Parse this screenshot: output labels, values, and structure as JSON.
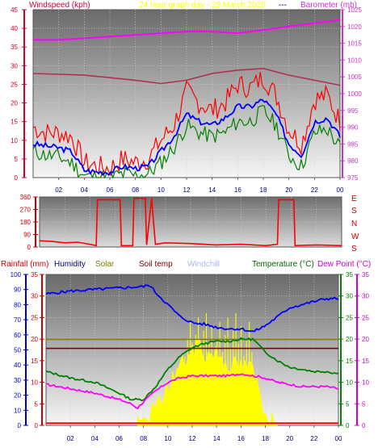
{
  "header": {
    "windspeed": "Windspeed (kph)",
    "title": "24 hour graph day - 29 March 2020",
    "dashes": "---",
    "barometer": "Barometer (mb)"
  },
  "legend2": {
    "rainfall": "Rainfall (mm)",
    "humidity": "Humidity",
    "solar": "Solar",
    "soiltemp": "Soil temp",
    "windchill": "Windchill",
    "temperature": "Temperature (°C)",
    "dewpoint": "Dew Point (°C)"
  },
  "compass": [
    "E",
    "S",
    "N",
    "W",
    "S"
  ],
  "colors": {
    "wind_gust": "#ff0000",
    "wind_avg": "#0000ff",
    "wind_low": "#008000",
    "barometer": "#b03050",
    "pressure_axis": "#cc33cc",
    "humidity": "#0000ff",
    "solar": "#808000",
    "soiltemp": "#800000",
    "temperature": "#008000",
    "dewpoint": "#ff00ff",
    "sun": "#ffff00",
    "rain": "#ff0000"
  },
  "chart_data": [
    {
      "type": "line",
      "name": "wind-barometer",
      "x_ticks": [
        "02",
        "04",
        "06",
        "08",
        "10",
        "12",
        "14",
        "16",
        "18",
        "20",
        "22",
        "00"
      ],
      "left_axis": {
        "ticks": [
          0,
          5,
          10,
          15,
          20,
          25,
          30,
          35,
          40,
          45
        ],
        "ylim": [
          0,
          45
        ]
      },
      "right_axis": {
        "ticks": [
          975,
          980,
          985,
          990,
          995,
          1000,
          1005,
          1010,
          1015,
          1020,
          1025
        ],
        "ylim": [
          975,
          1025
        ]
      },
      "series": [
        {
          "hours": [
            0,
            1,
            2,
            3,
            4,
            5,
            6,
            7,
            8,
            9,
            10,
            11,
            12,
            13,
            14,
            15,
            16,
            17,
            18,
            19,
            20,
            21,
            22,
            23,
            24
          ],
          "values": [
            13.5,
            12,
            12,
            11,
            4,
            3,
            2.5,
            5,
            4,
            5,
            10,
            14,
            23,
            20,
            18,
            20,
            25,
            24,
            27,
            22,
            13,
            9,
            21,
            22,
            15
          ]
        },
        {
          "hours": [
            0,
            1,
            2,
            3,
            4,
            5,
            6,
            7,
            8,
            9,
            10,
            11,
            12,
            13,
            14,
            15,
            16,
            17,
            18,
            19,
            20,
            21,
            22,
            23,
            24
          ],
          "values": [
            9,
            8.5,
            8,
            7,
            2,
            1.5,
            1.5,
            3,
            2.5,
            3,
            7,
            11,
            17,
            15,
            14,
            16,
            19,
            19,
            21,
            17,
            9,
            6,
            15,
            16,
            11
          ]
        },
        {
          "hours": [
            0,
            1,
            2,
            3,
            4,
            5,
            6,
            7,
            8,
            9,
            10,
            11,
            12,
            13,
            14,
            15,
            16,
            17,
            18,
            19,
            20,
            21,
            22,
            23,
            24
          ],
          "values": [
            7,
            6,
            5.5,
            4,
            0.5,
            0,
            0,
            1,
            0.5,
            1,
            4,
            8,
            14,
            12,
            11,
            12,
            15,
            15,
            18,
            14,
            6,
            3,
            12,
            13,
            8
          ]
        },
        {
          "hours": [
            0,
            4,
            8,
            10,
            12,
            14,
            16,
            18,
            20,
            22,
            24
          ],
          "values": [
            1006,
            1005.5,
            1004,
            1003,
            1004,
            1006,
            1007,
            1007.5,
            1005.5,
            1004,
            1002.5
          ]
        },
        {
          "hours": [
            0,
            2,
            4,
            6,
            8,
            10,
            12,
            14,
            16,
            18,
            20,
            22,
            24
          ],
          "values": [
            1016,
            1016,
            1016.5,
            1017,
            1017.5,
            1018,
            1018.5,
            1018.5,
            1018,
            1019,
            1020,
            1021,
            1022
          ]
        }
      ]
    },
    {
      "type": "line",
      "name": "wind-direction",
      "left_axis": {
        "ticks": [
          0,
          90,
          180,
          270,
          360
        ],
        "ylim": [
          0,
          360
        ]
      },
      "series": [
        {
          "hours": [
            0,
            1,
            2,
            3,
            4,
            4.5,
            4.6,
            6.4,
            6.5,
            7.4,
            7.5,
            8.4,
            8.5,
            8.9,
            9.2,
            10,
            12,
            14,
            16,
            18,
            18.9,
            19,
            20.2,
            20.3,
            22,
            24
          ],
          "values": [
            45,
            40,
            30,
            35,
            20,
            10,
            340,
            340,
            10,
            10,
            350,
            350,
            15,
            350,
            20,
            30,
            25,
            15,
            20,
            10,
            20,
            340,
            340,
            10,
            15,
            10
          ]
        }
      ]
    },
    {
      "type": "line",
      "name": "temperature-humidity",
      "x_ticks": [
        "02",
        "04",
        "06",
        "08",
        "10",
        "12",
        "14",
        "16",
        "18",
        "20",
        "22",
        "00"
      ],
      "left_axis": {
        "ticks": [
          0,
          10,
          20,
          30,
          40,
          50,
          60,
          70,
          80,
          90,
          100
        ],
        "ylim": [
          0,
          100
        ]
      },
      "left_axis_2": {
        "ticks": [
          0,
          5,
          10,
          15,
          20,
          25,
          30,
          35
        ],
        "ylim": [
          0,
          35
        ]
      },
      "right_axis": {
        "ticks": [
          0,
          5,
          10,
          15,
          20,
          25,
          30,
          35
        ],
        "ylim": [
          0,
          35
        ]
      },
      "series": [
        {
          "hours": [
            0,
            2,
            4,
            6,
            8,
            8.5,
            9,
            10,
            11,
            12,
            13,
            14,
            15,
            16,
            17,
            18,
            19,
            20,
            21,
            22,
            23,
            24
          ],
          "values": [
            87,
            89,
            90,
            91,
            92,
            93,
            88,
            80,
            72,
            68,
            67,
            65,
            64,
            64,
            62,
            66,
            72,
            78,
            80,
            82,
            84,
            84
          ]
        },
        {
          "hours": [
            0,
            24
          ],
          "values": [
            57,
            57
          ]
        },
        {
          "hours": [
            0,
            24
          ],
          "values": [
            51,
            51
          ]
        },
        {
          "hours": [
            0,
            2,
            4,
            6,
            7,
            8,
            9,
            10,
            11,
            12,
            13,
            14,
            15,
            16,
            17,
            18,
            19,
            20,
            21,
            22,
            23,
            24
          ],
          "values": [
            12.5,
            11,
            10,
            7.5,
            6,
            6,
            9,
            13,
            16,
            18,
            19,
            19.5,
            19.5,
            20,
            20,
            17,
            15,
            13.5,
            13,
            12.5,
            12.5,
            12
          ]
        },
        {
          "hours": [
            0,
            2,
            4,
            6,
            7,
            7.5,
            8,
            9,
            10,
            11,
            12,
            13,
            14,
            15,
            16,
            17,
            18,
            19,
            20,
            21,
            22,
            23,
            24
          ],
          "values": [
            9.5,
            8.5,
            7.5,
            6,
            5,
            4,
            5.5,
            8,
            10,
            11,
            11.5,
            11.5,
            11.5,
            11.5,
            12,
            11.5,
            11,
            10,
            9.5,
            9,
            9,
            9,
            8.5
          ]
        },
        {
          "hours": [
            7.5,
            8,
            9,
            10,
            11,
            12,
            12.5,
            13,
            14,
            15,
            16,
            17,
            17.5,
            18,
            19
          ],
          "values": [
            0,
            1,
            4,
            9,
            14,
            17,
            20,
            16,
            17,
            14,
            14,
            13,
            8,
            3,
            0
          ]
        },
        {
          "hours": [
            0,
            24
          ],
          "values": [
            0.5,
            0.5
          ]
        }
      ]
    }
  ]
}
